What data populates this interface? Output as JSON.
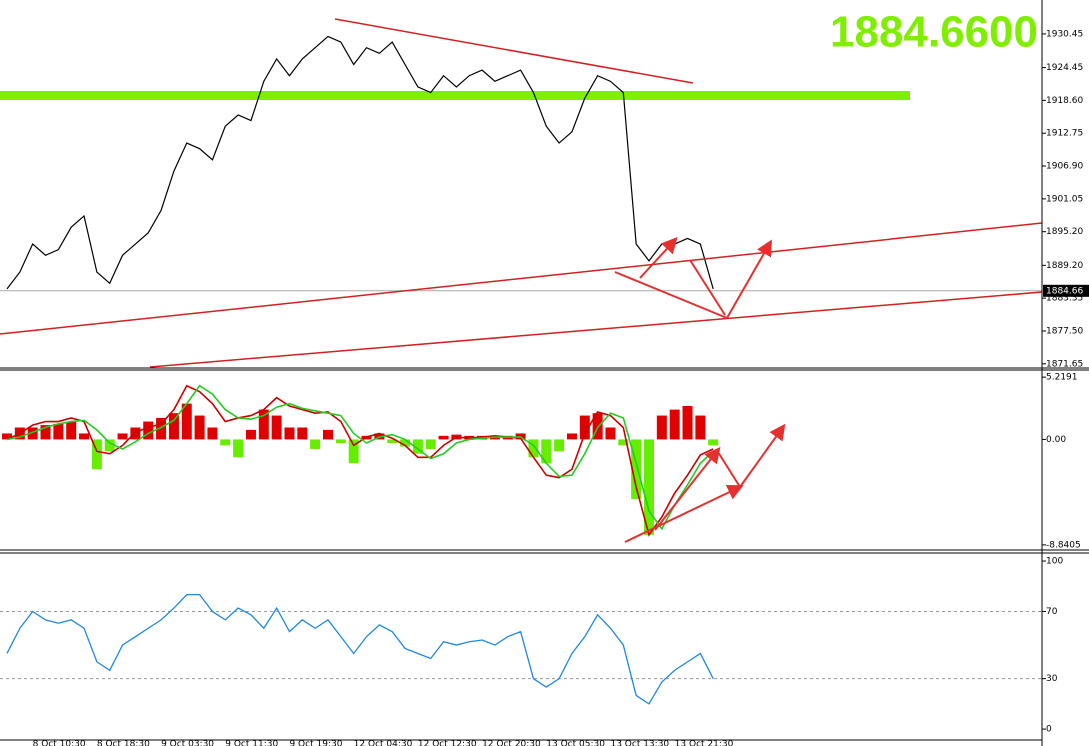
{
  "chart_data": [
    {
      "type": "line",
      "color": "#000000",
      "values": [
        1885,
        1888,
        1893,
        1891,
        1892,
        1896,
        1898,
        1888,
        1886,
        1891,
        1893,
        1895,
        1899,
        1906,
        1911,
        1910,
        1908,
        1914,
        1916,
        1915,
        1922,
        1926,
        1923,
        1926,
        1928,
        1930,
        1929,
        1925,
        1928,
        1927,
        1929,
        1925,
        1921,
        1920,
        1923,
        1921,
        1923,
        1924,
        1922,
        1923,
        1924,
        1920,
        1914,
        1911,
        1913,
        1919,
        1923,
        1922,
        1920,
        1893,
        1890,
        1893,
        1893,
        1894,
        1893,
        1885
      ],
      "ylim": [
        1870.9,
        1936.5
      ],
      "yticks": [
        1930.45,
        1924.45,
        {
          "value": 1918.6,
          "label": "1918.60"
        },
        1912.75,
        {
          "value": 1906.9,
          "label": "1906.90"
        },
        1901.05,
        {
          "value": 1895.2,
          "label": "1895.20"
        },
        {
          "value": 1889.2,
          "label": "1889.20"
        },
        1883.35,
        {
          "value": 1877.5,
          "label": "1877.50"
        },
        1871.65
      ],
      "last_price": 1884.66,
      "price_display": {
        "value": 1884.66,
        "label": "1884.6600"
      }
    },
    {
      "type": "macd",
      "histogram": {
        "values": [
          0.5,
          1,
          1,
          1.2,
          1.3,
          1.5,
          0.5,
          -2.5,
          -1,
          0.5,
          1,
          1.5,
          1.8,
          2.2,
          3,
          2,
          1,
          -0.5,
          -1.5,
          0.8,
          2.5,
          2,
          1,
          1,
          -0.8,
          0.8,
          -0.3,
          -2,
          0.3,
          0.5,
          -0.3,
          -0.6,
          -1.2,
          -0.8,
          0.3,
          0.4,
          0.3,
          0.3,
          0.3,
          0.3,
          0.5,
          -1.5,
          -2,
          -1,
          0.5,
          2,
          2.2,
          1,
          -0.5,
          -5,
          -8,
          2,
          2.5,
          2.8,
          2,
          -0.5
        ],
        "positive_color": "#e00000",
        "negative_color": "#66ee00"
      },
      "series": [
        {
          "color": "#cc0000",
          "values": [
            0,
            0.5,
            1.2,
            1.5,
            1.5,
            1.8,
            1.5,
            -1,
            -1.2,
            -0.5,
            0.6,
            1,
            1.3,
            2.5,
            4.5,
            4,
            3,
            1.5,
            1.8,
            2,
            2.5,
            3.5,
            2.8,
            2.5,
            2.2,
            2.3,
            1.5,
            -0.5,
            0.2,
            0.5,
            0.1,
            -0.5,
            -1.5,
            -1.5,
            -0.5,
            0.2,
            0.1,
            0.2,
            0.3,
            0.2,
            0.1,
            -1.5,
            -3,
            -3.2,
            -2.5,
            0.5,
            2.3,
            2,
            1,
            -4,
            -8,
            -6.5,
            -4.5,
            -3,
            -1.3,
            -0.8
          ]
        },
        {
          "color": "#22cc22",
          "values": [
            0,
            0.2,
            0.6,
            1,
            1.3,
            1.5,
            1.6,
            0.8,
            -0.3,
            -0.8,
            -0.2,
            0.5,
            1,
            1.6,
            3,
            4.5,
            3.8,
            2.5,
            1.8,
            1.7,
            2,
            2.7,
            3,
            2.6,
            2.4,
            2.2,
            2,
            0.5,
            -0.3,
            0.2,
            0.4,
            0,
            -0.8,
            -1.6,
            -1.2,
            -0.3,
            0,
            0.1,
            0.2,
            0.2,
            0.2,
            -0.5,
            -2,
            -3.1,
            -3,
            -1.2,
            1,
            2.2,
            1.8,
            -2,
            -6,
            -7.5,
            -5.5,
            -3.8,
            -2,
            -1
          ]
        }
      ],
      "ylim": [
        -9.27,
        5.82
      ],
      "yticks": [
        5.2191,
        {
          "value": 0,
          "label": "0.00"
        },
        -8.8405
      ]
    },
    {
      "type": "rsi",
      "color": "#1e88e5",
      "values": [
        45,
        60,
        70,
        65,
        63,
        65,
        60,
        40,
        35,
        50,
        55,
        60,
        65,
        72,
        80,
        80,
        70,
        65,
        72,
        68,
        60,
        72,
        58,
        65,
        60,
        65,
        55,
        45,
        55,
        62,
        58,
        48,
        45,
        42,
        52,
        50,
        52,
        53,
        50,
        55,
        58,
        30,
        25,
        30,
        45,
        55,
        68,
        60,
        50,
        20,
        15,
        28,
        35,
        40,
        45,
        30
      ],
      "ylim": [
        -6.5,
        103.6
      ],
      "yticks": [
        100,
        70,
        30,
        0
      ],
      "levels": [
        70,
        30
      ],
      "categories": [
        null,
        null,
        "8 Oct 10:30",
        null,
        null,
        null,
        null,
        "8 Oct 18:30",
        null,
        null,
        null,
        null,
        "9 Oct 03:30",
        null,
        null,
        null,
        null,
        "9 Oct 11:30",
        null,
        null,
        null,
        null,
        "9 Oct 19:30",
        null,
        null,
        null,
        null,
        "12 Oct 04:30",
        null,
        null,
        null,
        null,
        "12 Oct 12:30",
        null,
        null,
        null,
        null,
        "12 Oct 20:30",
        null,
        null,
        null,
        null,
        "13 Oct 05:30",
        null,
        null,
        null,
        null,
        "13 Oct 13:30",
        null,
        null,
        null,
        null,
        "13 Oct 21:30",
        null,
        null,
        null
      ]
    }
  ]
}
